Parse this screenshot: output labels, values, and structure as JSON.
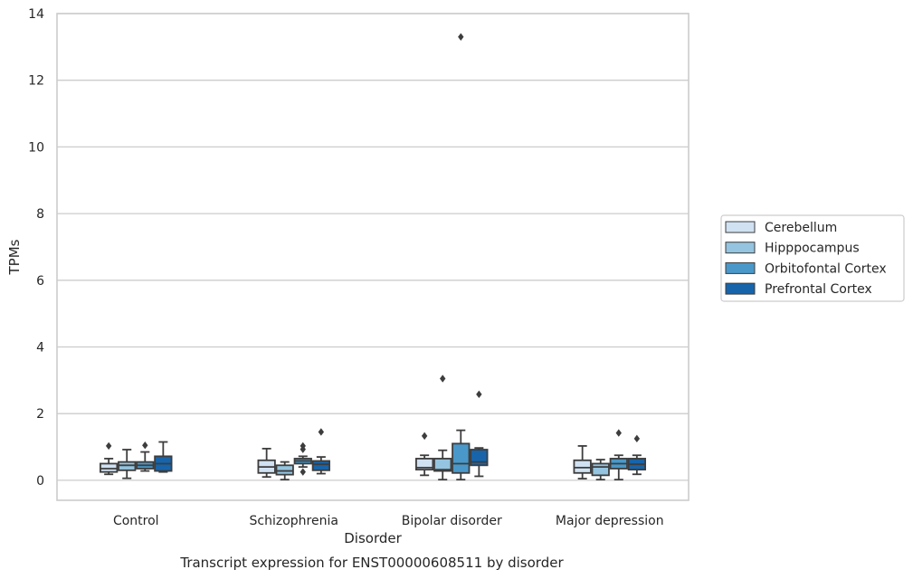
{
  "chart_data": {
    "type": "box",
    "title": "Transcript expression for ENST00000608511 by disorder",
    "xlabel": "Disorder",
    "ylabel": "TPMs",
    "ylim": [
      -0.6,
      14
    ],
    "yticks": [
      0,
      2,
      4,
      6,
      8,
      10,
      12,
      14
    ],
    "grid": true,
    "legend_position": "right",
    "categories": [
      "Control",
      "Schizophrenia",
      "Bipolar disorder",
      "Major depression"
    ],
    "series": [
      {
        "name": "Cerebellum",
        "color": "#d0e1f2",
        "boxes": [
          {
            "whisker_low": 0.18,
            "q1": 0.25,
            "median": 0.35,
            "q3": 0.5,
            "whisker_high": 0.65,
            "outliers": [
              1.03
            ]
          },
          {
            "whisker_low": 0.1,
            "q1": 0.22,
            "median": 0.4,
            "q3": 0.6,
            "whisker_high": 0.95,
            "outliers": []
          },
          {
            "whisker_low": 0.15,
            "q1": 0.32,
            "median": 0.38,
            "q3": 0.65,
            "whisker_high": 0.75,
            "outliers": [
              1.33
            ]
          },
          {
            "whisker_low": 0.05,
            "q1": 0.22,
            "median": 0.38,
            "q3": 0.6,
            "whisker_high": 1.03,
            "outliers": []
          }
        ]
      },
      {
        "name": "Hipppocampus",
        "color": "#94c4df",
        "boxes": [
          {
            "whisker_low": 0.06,
            "q1": 0.3,
            "median": 0.45,
            "q3": 0.55,
            "whisker_high": 0.92,
            "outliers": []
          },
          {
            "whisker_low": 0.02,
            "q1": 0.17,
            "median": 0.28,
            "q3": 0.45,
            "whisker_high": 0.55,
            "outliers": []
          },
          {
            "whisker_low": 0.02,
            "q1": 0.28,
            "median": 0.32,
            "q3": 0.65,
            "whisker_high": 0.9,
            "outliers": [
              3.05
            ]
          },
          {
            "whisker_low": 0.02,
            "q1": 0.15,
            "median": 0.4,
            "q3": 0.5,
            "whisker_high": 0.62,
            "outliers": []
          }
        ]
      },
      {
        "name": "Orbitofontal Cortex",
        "color": "#4a98c9",
        "boxes": [
          {
            "whisker_low": 0.28,
            "q1": 0.35,
            "median": 0.45,
            "q3": 0.55,
            "whisker_high": 0.85,
            "outliers": [
              1.05
            ]
          },
          {
            "whisker_low": 0.4,
            "q1": 0.5,
            "median": 0.58,
            "q3": 0.65,
            "whisker_high": 0.72,
            "outliers": [
              1.03,
              0.93,
              0.25
            ]
          },
          {
            "whisker_low": 0.02,
            "q1": 0.22,
            "median": 0.5,
            "q3": 1.1,
            "whisker_high": 1.5,
            "outliers": [
              13.3
            ]
          },
          {
            "whisker_low": 0.02,
            "q1": 0.35,
            "median": 0.5,
            "q3": 0.65,
            "whisker_high": 0.75,
            "outliers": [
              1.42
            ]
          }
        ]
      },
      {
        "name": "Prefrontal Cortex",
        "color": "#1764ab",
        "boxes": [
          {
            "whisker_low": 0.25,
            "q1": 0.28,
            "median": 0.5,
            "q3": 0.72,
            "whisker_high": 1.15,
            "outliers": []
          },
          {
            "whisker_low": 0.2,
            "q1": 0.3,
            "median": 0.48,
            "q3": 0.58,
            "whisker_high": 0.7,
            "outliers": [
              1.45
            ]
          },
          {
            "whisker_low": 0.12,
            "q1": 0.45,
            "median": 0.55,
            "q3": 0.92,
            "whisker_high": 0.97,
            "outliers": [
              2.58
            ]
          },
          {
            "whisker_low": 0.18,
            "q1": 0.32,
            "median": 0.48,
            "q3": 0.65,
            "whisker_high": 0.75,
            "outliers": [
              1.25
            ]
          }
        ]
      }
    ]
  }
}
